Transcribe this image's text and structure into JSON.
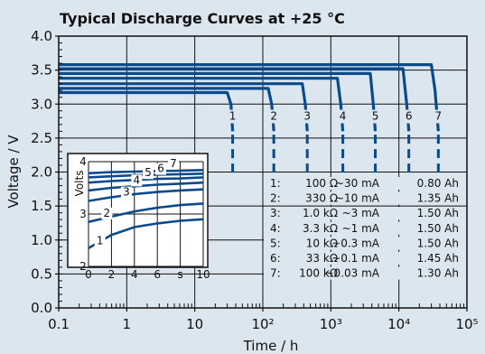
{
  "chart_data": {
    "type": "line",
    "title": "Typical Discharge Curves at +25 °C",
    "xlabel": "Time / h",
    "ylabel": "Voltage / V",
    "x_scale": "log",
    "xlim": [
      0.1,
      100000
    ],
    "ylim": [
      0,
      4
    ],
    "x_ticks": [
      "0.1",
      "1",
      "10",
      "10²",
      "10³",
      "10⁴",
      "10⁵"
    ],
    "y_ticks": [
      "0.0",
      "0.5",
      "1.0",
      "1.5",
      "2.0",
      "2.5",
      "3.0",
      "3.5",
      "4.0"
    ],
    "grid": true,
    "series": [
      {
        "name": "1",
        "color": "#0a4a8c",
        "points": [
          [
            0.1,
            3.17
          ],
          [
            30,
            3.17
          ],
          [
            34,
            3.0
          ],
          [
            36,
            2.6
          ]
        ]
      },
      {
        "name": "2",
        "color": "#0a4a8c",
        "points": [
          [
            0.1,
            3.23
          ],
          [
            120,
            3.23
          ],
          [
            135,
            3.0
          ],
          [
            145,
            2.6
          ]
        ]
      },
      {
        "name": "3",
        "color": "#0a4a8c",
        "points": [
          [
            0.1,
            3.3
          ],
          [
            380,
            3.3
          ],
          [
            420,
            3.0
          ],
          [
            450,
            2.6
          ]
        ]
      },
      {
        "name": "4",
        "color": "#0a4a8c",
        "points": [
          [
            0.1,
            3.38
          ],
          [
            1250,
            3.38
          ],
          [
            1400,
            3.0
          ],
          [
            1500,
            2.6
          ]
        ]
      },
      {
        "name": "5",
        "color": "#0a4a8c",
        "points": [
          [
            0.1,
            3.45
          ],
          [
            3800,
            3.45
          ],
          [
            4200,
            3.0
          ],
          [
            4500,
            2.6
          ]
        ]
      },
      {
        "name": "6",
        "color": "#0a4a8c",
        "points": [
          [
            0.1,
            3.52
          ],
          [
            11500,
            3.52
          ],
          [
            13000,
            3.0
          ],
          [
            14000,
            2.6
          ]
        ]
      },
      {
        "name": "7",
        "color": "#0a4a8c",
        "points": [
          [
            0.1,
            3.58
          ],
          [
            30000,
            3.58
          ],
          [
            34000,
            3.2
          ],
          [
            38000,
            2.6
          ]
        ]
      }
    ],
    "curve_labels": [
      "1",
      "2",
      "3",
      "4",
      "5",
      "6",
      "7"
    ],
    "inset": {
      "ylabel": "Volts",
      "x_ticks": [
        "0",
        "2",
        "4",
        "6",
        "s",
        "10"
      ],
      "y_ticks": [
        "4",
        "3",
        "2"
      ],
      "xlim": [
        0,
        10
      ],
      "ylim": [
        2,
        4
      ],
      "curve_labels": [
        "1",
        "2",
        "3",
        "4",
        "5",
        "6",
        "7"
      ],
      "series": [
        {
          "name": "1",
          "points": [
            [
              0,
              2.35
            ],
            [
              2,
              2.6
            ],
            [
              4,
              2.75
            ],
            [
              6,
              2.82
            ],
            [
              8,
              2.87
            ],
            [
              10,
              2.9
            ]
          ]
        },
        {
          "name": "2",
          "points": [
            [
              0,
              2.85
            ],
            [
              2,
              2.95
            ],
            [
              4,
              3.05
            ],
            [
              6,
              3.12
            ],
            [
              8,
              3.17
            ],
            [
              10,
              3.2
            ]
          ]
        },
        {
          "name": "3",
          "points": [
            [
              0,
              3.25
            ],
            [
              2,
              3.32
            ],
            [
              4,
              3.38
            ],
            [
              6,
              3.42
            ],
            [
              8,
              3.45
            ],
            [
              10,
              3.47
            ]
          ]
        },
        {
          "name": "4",
          "points": [
            [
              0,
              3.45
            ],
            [
              2,
              3.5
            ],
            [
              4,
              3.53
            ],
            [
              6,
              3.56
            ],
            [
              8,
              3.58
            ],
            [
              10,
              3.6
            ]
          ]
        },
        {
          "name": "5",
          "points": [
            [
              0,
              3.6
            ],
            [
              2,
              3.63
            ],
            [
              4,
              3.65
            ],
            [
              6,
              3.67
            ],
            [
              8,
              3.68
            ],
            [
              10,
              3.7
            ]
          ]
        },
        {
          "name": "6",
          "points": [
            [
              0,
              3.7
            ],
            [
              2,
              3.72
            ],
            [
              4,
              3.74
            ],
            [
              6,
              3.75
            ],
            [
              8,
              3.76
            ],
            [
              10,
              3.77
            ]
          ]
        },
        {
          "name": "7",
          "points": [
            [
              0,
              3.78
            ],
            [
              2,
              3.8
            ],
            [
              4,
              3.81
            ],
            [
              6,
              3.82
            ],
            [
              8,
              3.83
            ],
            [
              10,
              3.84
            ]
          ]
        }
      ]
    },
    "legend_rows": [
      {
        "id": "1:",
        "load": "100 Ω",
        "current": "~30 mA",
        "capacity": "0.80 Ah"
      },
      {
        "id": "2:",
        "load": "330 Ω",
        "current": "~10 mA",
        "capacity": "1.35 Ah"
      },
      {
        "id": "3:",
        "load": "1.0 kΩ",
        "current": "~3 mA",
        "capacity": "1.50 Ah"
      },
      {
        "id": "4:",
        "load": "3.3 kΩ",
        "current": "~1 mA",
        "capacity": "1.50 Ah"
      },
      {
        "id": "5:",
        "load": "10 kΩ",
        "current": "~0.3 mA",
        "capacity": "1.50 Ah"
      },
      {
        "id": "6:",
        "load": "33 kΩ",
        "current": "~0.1 mA",
        "capacity": "1.45 Ah"
      },
      {
        "id": "7:",
        "load": "100 kΩ",
        "current": "~0.03 mA",
        "capacity": "1.30 Ah"
      }
    ]
  }
}
